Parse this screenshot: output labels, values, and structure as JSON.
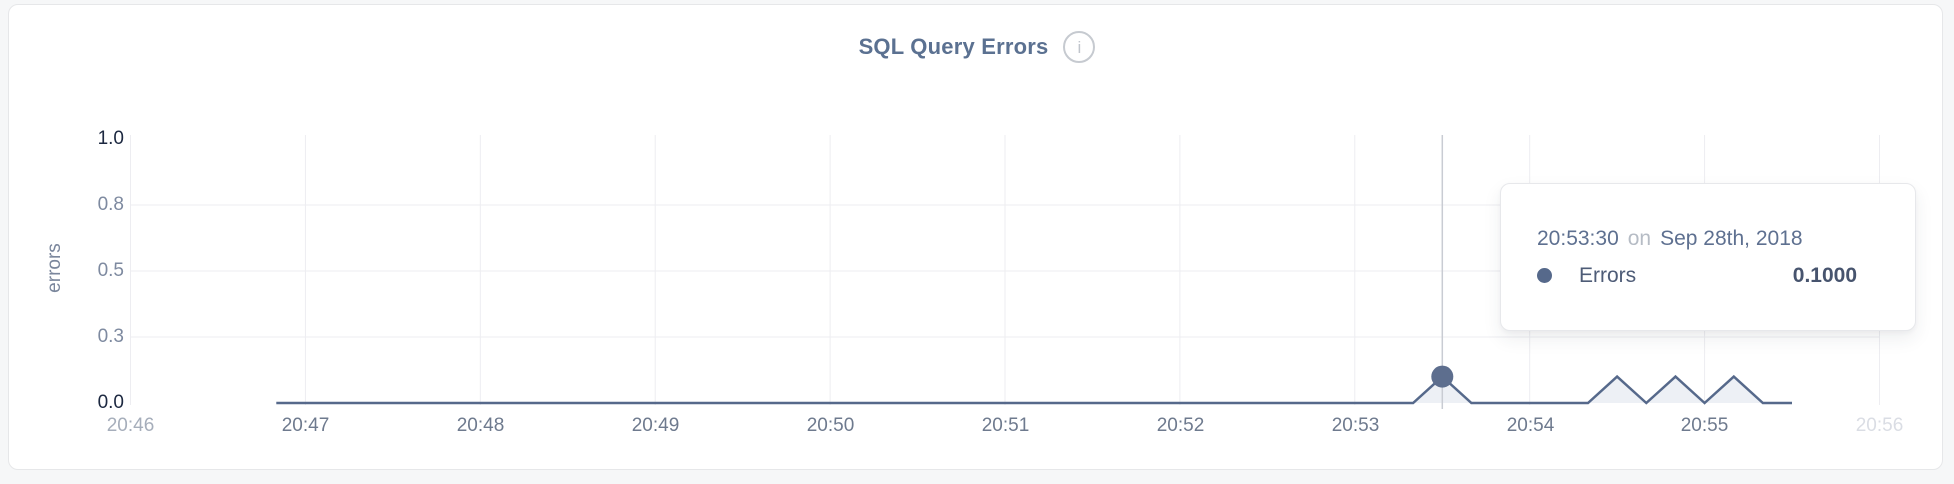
{
  "panel": {
    "title": "SQL Query Errors",
    "info_icon_glyph": "i"
  },
  "chart_data": {
    "type": "line",
    "title": "SQL Query Errors",
    "xlabel": "",
    "ylabel": "errors",
    "x_range": [
      "20:46",
      "20:56"
    ],
    "x_tick_labels": [
      "20:46",
      "20:47",
      "20:48",
      "20:49",
      "20:50",
      "20:51",
      "20:52",
      "20:53",
      "20:54",
      "20:55",
      "20:56"
    ],
    "y_tick_labels": [
      "1.0",
      "0.8",
      "0.5",
      "0.3",
      "0.0"
    ],
    "y_tick_values": [
      1.0,
      0.75,
      0.5,
      0.25,
      0.0
    ],
    "ylim": [
      0,
      1
    ],
    "grid": true,
    "legend_position": "tooltip",
    "series": [
      {
        "name": "Errors",
        "color": "#56698b",
        "fill_color": "#edf0f5",
        "start_time": "20:46:50",
        "interval_seconds": 10,
        "values": [
          0,
          0,
          0,
          0,
          0,
          0,
          0,
          0,
          0,
          0,
          0,
          0,
          0,
          0,
          0,
          0,
          0,
          0,
          0,
          0,
          0,
          0,
          0,
          0,
          0,
          0,
          0,
          0,
          0,
          0,
          0,
          0,
          0,
          0,
          0,
          0,
          0,
          0,
          0,
          0,
          0.1,
          0,
          0,
          0,
          0,
          0,
          0.1,
          0,
          0.1,
          0,
          0.1,
          0,
          0
        ]
      }
    ],
    "highlight_point": {
      "time": "20:53:30",
      "value": 0.1
    }
  },
  "tooltip": {
    "time": "20:53:30",
    "separator": "on",
    "date": "Sep 28th, 2018",
    "series_label": "Errors",
    "value": "0.1000"
  },
  "colors": {
    "title": "#5b7191",
    "line": "#56698b",
    "area_fill": "#edf0f5",
    "grid": "#ededf1",
    "crosshair": "#c9ccd3",
    "dot": "#5d6e8e",
    "tick_dark": "#1c2840",
    "tick_muted": "#7e8aa0"
  }
}
